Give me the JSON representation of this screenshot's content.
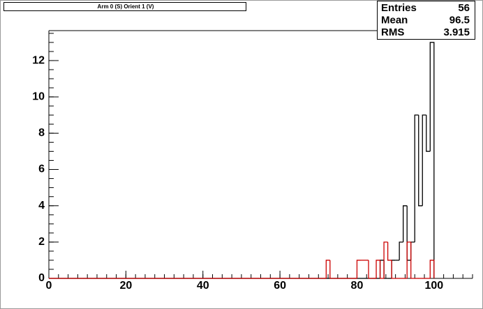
{
  "chart_data": {
    "type": "histogram",
    "title": "Arm 0 (S) Orient 1 (V)",
    "stats": [
      {
        "label": "Entries",
        "value": 56
      },
      {
        "label": "Mean",
        "value": 96.5
      },
      {
        "label": "RMS",
        "value": 3.915
      }
    ],
    "bins": [
      0,
      1,
      2,
      3,
      4,
      5,
      6,
      7,
      8,
      9,
      10,
      11,
      12,
      13,
      14,
      15,
      16,
      17,
      18,
      19,
      20,
      21,
      22,
      23,
      24,
      25,
      26,
      27,
      28,
      29,
      30,
      31,
      32,
      33,
      34,
      35,
      36,
      37,
      38,
      39,
      40,
      41,
      42,
      43,
      44,
      45,
      46,
      47,
      48,
      49,
      50,
      51,
      52,
      53,
      54,
      55,
      56,
      57,
      58,
      59,
      60,
      61,
      62,
      63,
      64,
      65,
      66,
      67,
      68,
      69,
      70,
      71,
      72,
      73,
      74,
      75,
      76,
      77,
      78,
      79,
      80,
      81,
      82,
      83,
      84,
      85,
      86,
      87,
      88,
      89,
      90,
      91,
      92,
      93,
      94,
      95,
      96,
      97,
      98,
      99,
      100
    ],
    "series": [
      {
        "color": "#000000",
        "values": [
          0,
          0,
          0,
          0,
          0,
          0,
          0,
          0,
          0,
          0,
          0,
          0,
          0,
          0,
          0,
          0,
          0,
          0,
          0,
          0,
          0,
          0,
          0,
          0,
          0,
          0,
          0,
          0,
          0,
          0,
          0,
          0,
          0,
          0,
          0,
          0,
          0,
          0,
          0,
          0,
          0,
          0,
          0,
          0,
          0,
          0,
          0,
          0,
          0,
          0,
          0,
          0,
          0,
          0,
          0,
          0,
          0,
          0,
          0,
          0,
          0,
          0,
          0,
          0,
          0,
          0,
          0,
          0,
          0,
          0,
          0,
          0,
          0,
          0,
          0,
          0,
          0,
          0,
          0,
          0,
          0,
          0,
          0,
          0,
          0,
          0,
          1,
          0,
          0,
          1,
          1,
          2,
          4,
          1,
          2,
          9,
          4,
          9,
          7,
          13
        ]
      },
      {
        "color": "#cc0000",
        "values": [
          0,
          0,
          0,
          0,
          0,
          0,
          0,
          0,
          0,
          0,
          0,
          0,
          0,
          0,
          0,
          0,
          0,
          0,
          0,
          0,
          0,
          0,
          0,
          0,
          0,
          0,
          0,
          0,
          0,
          0,
          0,
          0,
          0,
          0,
          0,
          0,
          0,
          0,
          0,
          0,
          0,
          0,
          0,
          0,
          0,
          0,
          0,
          0,
          0,
          0,
          0,
          0,
          0,
          0,
          0,
          0,
          0,
          0,
          0,
          0,
          0,
          0,
          0,
          0,
          0,
          0,
          0,
          0,
          0,
          0,
          0,
          0,
          1,
          0,
          0,
          0,
          0,
          0,
          0,
          0,
          1,
          1,
          1,
          0,
          0,
          1,
          0,
          2,
          1,
          0,
          0,
          0,
          0,
          2,
          0,
          0,
          0,
          0,
          0,
          1
        ]
      }
    ],
    "xlim": [
      0,
      110
    ],
    "ylim": [
      0,
      13.65
    ],
    "xticks": [
      0,
      20,
      40,
      60,
      80,
      100
    ],
    "yticks": [
      0,
      2,
      4,
      6,
      8,
      10,
      12
    ]
  }
}
